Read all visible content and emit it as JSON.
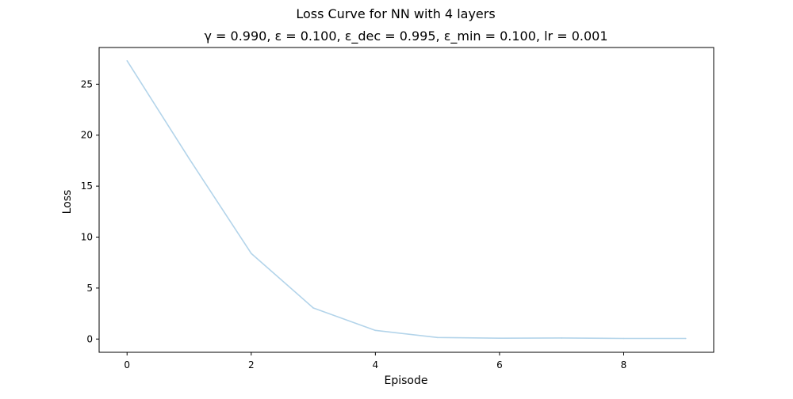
{
  "chart_data": {
    "type": "line",
    "title": "Loss Curve for NN with 4 layers",
    "subtitle": "γ = 0.990, ε = 0.100, ε_dec = 0.995, ε_min = 0.100, lr = 0.001",
    "xlabel": "Episode",
    "ylabel": "Loss",
    "xlim": [
      -0.45,
      9.45
    ],
    "ylim": [
      -1.3,
      28.6
    ],
    "xticks": [
      0,
      2,
      4,
      6,
      8
    ],
    "yticks": [
      0,
      5,
      10,
      15,
      20,
      25
    ],
    "grid": false,
    "line_color": "#b3d4ea",
    "series": [
      {
        "x": [
          0,
          1,
          2,
          3,
          4,
          5,
          6,
          7,
          8,
          9
        ],
        "values": [
          27.3,
          17.7,
          8.4,
          3.05,
          0.85,
          0.15,
          0.08,
          0.1,
          0.06,
          0.06
        ]
      }
    ]
  }
}
